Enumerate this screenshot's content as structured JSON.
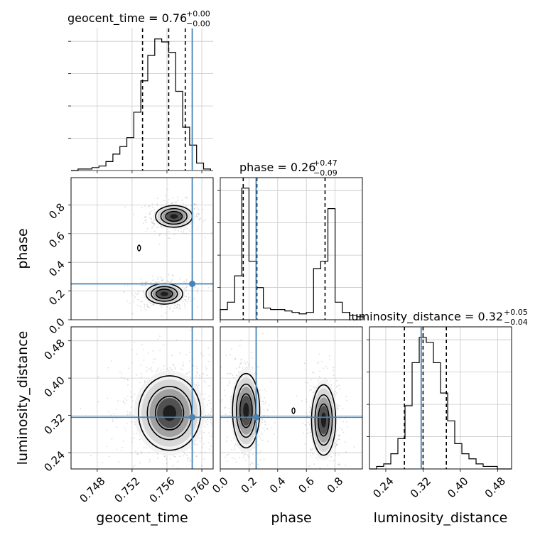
{
  "chart_data": {
    "type": "corner",
    "parameters": [
      "geocent_time",
      "phase",
      "luminosity_distance"
    ],
    "truth_color": "#4682b4",
    "truths": {
      "geocent_time": 0.7589,
      "phase": 0.25,
      "luminosity_distance": 0.316
    },
    "titles": [
      {
        "param": "geocent_time",
        "text": "geocent_time = 0.76",
        "plus": "+0.00",
        "minus": "−0.00"
      },
      {
        "param": "phase",
        "text": "phase = 0.26",
        "plus": "+0.47",
        "minus": "−0.09"
      },
      {
        "param": "luminosity_distance",
        "text": "luminosity_distance = 0.32",
        "plus": "+0.05",
        "minus": "−0.04"
      }
    ],
    "axes": {
      "geocent_time": {
        "label": "geocent_time",
        "range": [
          0.745,
          0.7613
        ],
        "ticks": [
          0.748,
          0.752,
          0.756,
          0.76
        ],
        "tick_labels": [
          "0.748",
          "0.752",
          "0.756",
          "0.760"
        ]
      },
      "phase": {
        "label": "phase",
        "range": [
          0.0,
          0.99
        ],
        "ticks": [
          0.0,
          0.2,
          0.4,
          0.6,
          0.8
        ],
        "tick_labels": [
          "0.0",
          "0.2",
          "0.4",
          "0.6",
          "0.8"
        ]
      },
      "luminosity_distance": {
        "label": "luminosity_distance",
        "range": [
          0.205,
          0.51
        ],
        "ticks": [
          0.24,
          0.32,
          0.4,
          0.48
        ],
        "tick_labels": [
          "0.24",
          "0.32",
          "0.40",
          "0.48"
        ]
      }
    },
    "histograms": {
      "geocent_time": {
        "bin_edges": [
          0.745,
          0.7458,
          0.7466,
          0.7474,
          0.7482,
          0.749,
          0.7498,
          0.7506,
          0.7514,
          0.7522,
          0.753,
          0.7538,
          0.7546,
          0.7554,
          0.7562,
          0.757,
          0.7578,
          0.7586,
          0.7594,
          0.7602,
          0.761
        ],
        "counts": [
          0,
          1,
          1,
          2,
          3,
          6,
          11,
          16,
          22,
          39,
          60,
          77,
          88,
          86,
          79,
          53,
          29,
          17,
          5,
          1
        ],
        "quantiles": [
          0.7532,
          0.7562,
          0.7581
        ]
      },
      "phase": {
        "bin_edges": [
          0.0,
          0.05,
          0.1,
          0.15,
          0.2,
          0.25,
          0.3,
          0.35,
          0.4,
          0.45,
          0.5,
          0.55,
          0.6,
          0.65,
          0.7,
          0.75,
          0.8,
          0.85,
          0.9,
          0.95,
          1.0
        ],
        "counts": [
          7,
          12,
          30,
          90,
          40,
          22,
          8,
          7,
          7,
          6,
          5,
          4,
          5,
          35,
          40,
          76,
          12,
          5,
          3,
          2
        ],
        "quantiles": [
          0.16,
          0.255,
          0.73
        ]
      },
      "luminosity_distance": {
        "bin_edges": [
          0.205,
          0.2203,
          0.2355,
          0.2508,
          0.266,
          0.2813,
          0.2965,
          0.3118,
          0.327,
          0.3423,
          0.3575,
          0.3728,
          0.388,
          0.4033,
          0.4185,
          0.4338,
          0.449,
          0.4643,
          0.4795,
          0.4948,
          0.51
        ],
        "counts": [
          0,
          1,
          2,
          6,
          12,
          25,
          42,
          52,
          50,
          42,
          30,
          19,
          10,
          6,
          4,
          2,
          1,
          1,
          0,
          0
        ],
        "quantiles": [
          0.28,
          0.32,
          0.37
        ]
      }
    },
    "two_d": [
      {
        "x": "geocent_time",
        "y": "phase",
        "modes": [
          {
            "cx": 0.7568,
            "cy": 0.72,
            "sx": 0.001,
            "sy": 0.036,
            "w": 0.42
          },
          {
            "cx": 0.7557,
            "cy": 0.18,
            "sx": 0.001,
            "sy": 0.034,
            "w": 0.48
          }
        ],
        "contour_levels": [
          0.25,
          0.55,
          0.85
        ],
        "small_contour": {
          "x": 0.7528,
          "y": 0.5
        }
      },
      {
        "x": "geocent_time",
        "y": "luminosity_distance",
        "modes": [
          {
            "cx": 0.7563,
            "cy": 0.325,
            "sx": 0.0017,
            "sy": 0.038,
            "w": 1.0
          }
        ],
        "contour_levels": [
          0.25,
          0.55,
          0.85
        ]
      },
      {
        "x": "phase",
        "y": "luminosity_distance",
        "modes": [
          {
            "cx": 0.18,
            "cy": 0.33,
            "sx": 0.045,
            "sy": 0.038,
            "w": 0.52
          },
          {
            "cx": 0.72,
            "cy": 0.31,
            "sx": 0.04,
            "sy": 0.036,
            "w": 0.48
          }
        ],
        "contour_levels": [
          0.25,
          0.55,
          0.85
        ],
        "small_contour": {
          "x": 0.51,
          "y": 0.33
        }
      }
    ]
  }
}
